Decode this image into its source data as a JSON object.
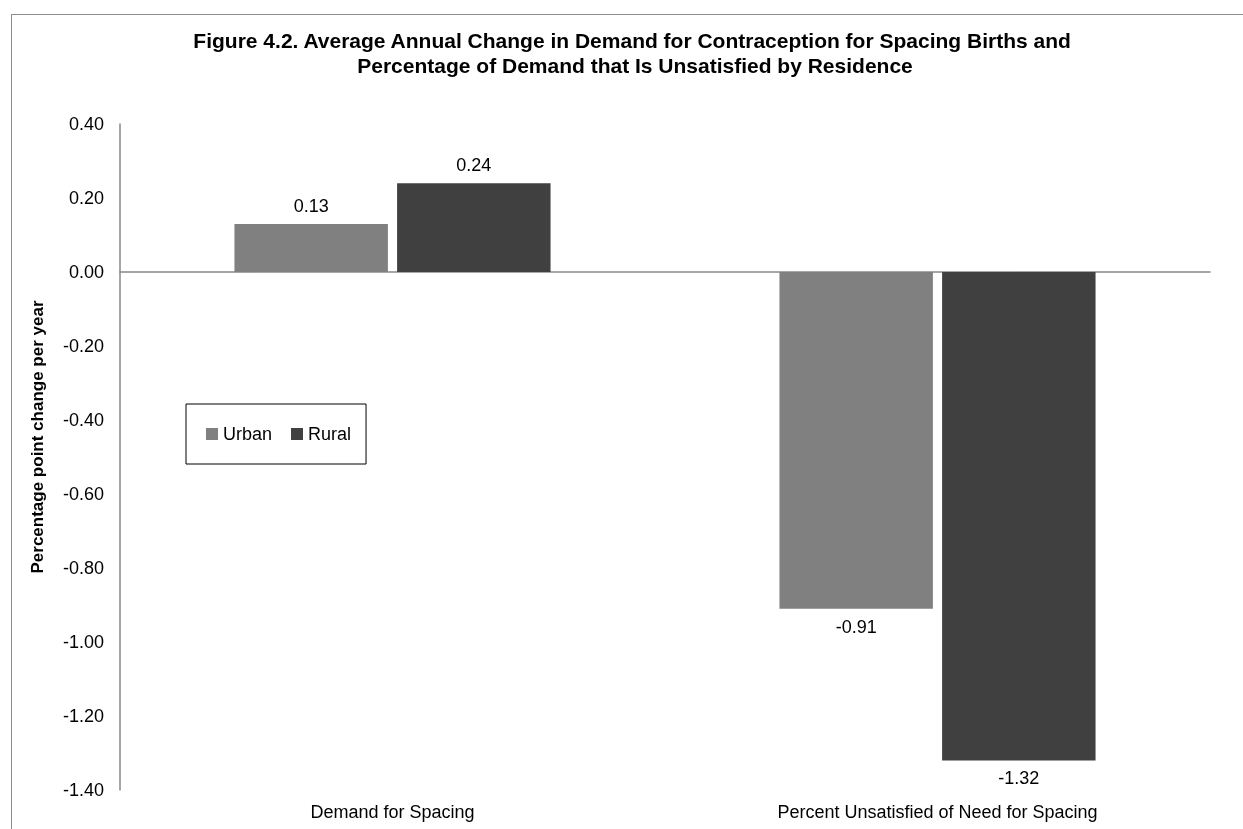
{
  "chart_data": {
    "type": "bar",
    "title": "Figure 4.2. Average Annual Change in Demand for Contraception for Spacing Births and Percentage of Demand that Is Unsatisfied by Residence",
    "ylabel": "Percentage point change per year",
    "categories": [
      "Demand for Spacing",
      "Percent Unsatisfied of Need for Spacing"
    ],
    "series": [
      {
        "name": "Urban",
        "color": "#808080",
        "values": [
          0.13,
          -0.91
        ]
      },
      {
        "name": "Rural",
        "color": "#404040",
        "values": [
          0.24,
          -1.32
        ]
      }
    ],
    "ylim": [
      -1.4,
      0.4
    ],
    "yticks": [
      {
        "value": -1.4,
        "label": "-1.40"
      },
      {
        "value": -1.2,
        "label": "-1.20"
      },
      {
        "value": -1,
        "label": "-1.00"
      },
      {
        "value": -0.8,
        "label": "-0.80"
      },
      {
        "value": -0.6,
        "label": "-0.60"
      },
      {
        "value": -0.4,
        "label": "-0.40"
      },
      {
        "value": -0.2,
        "label": "-0.20"
      },
      {
        "value": 0,
        "label": "0.00"
      },
      {
        "value": 0.2,
        "label": "0.20"
      },
      {
        "value": 0.4,
        "label": "0.40"
      }
    ],
    "data_labels": true,
    "legend": "left"
  }
}
